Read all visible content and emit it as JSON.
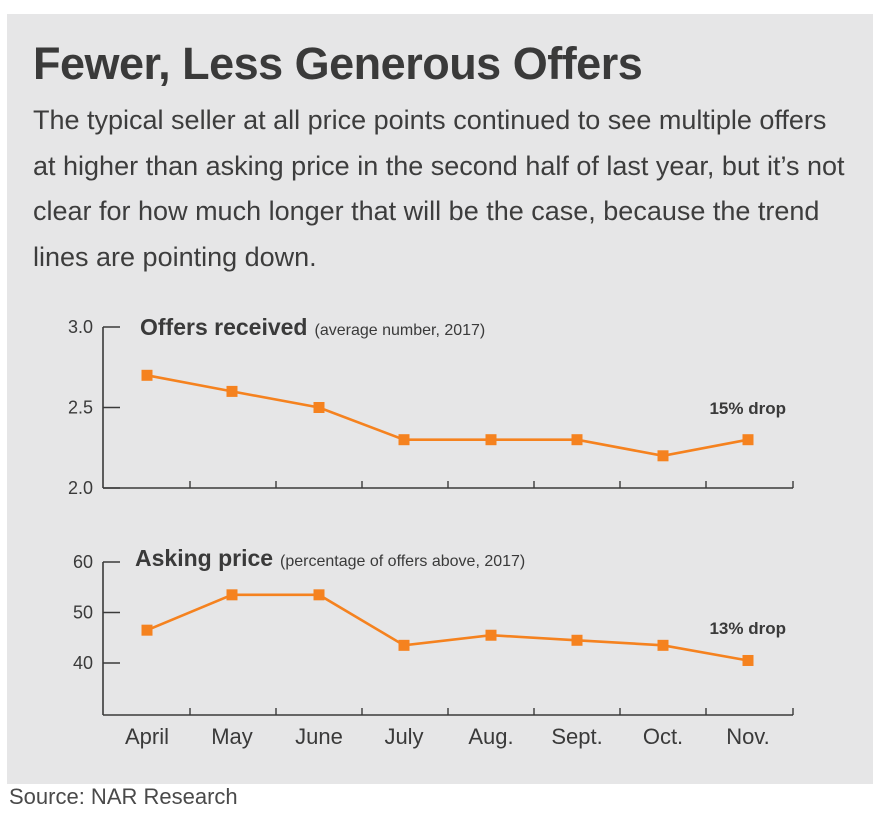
{
  "title": "Fewer, Less Generous Offers",
  "subtitle": "The typical seller at all price points continued to see multiple offers at higher than asking price in the second half of last year, but it’s not clear for how much longer that will be the case, because the trend lines are pointing down.",
  "source": "Source: NAR Research",
  "colors": {
    "background": "#e6e6e7",
    "line": "#f5821f",
    "text": "#3a3a3a"
  },
  "chart_data": [
    {
      "type": "line",
      "title": "Offers received",
      "subtitle": "(average number, 2017)",
      "categories": [
        "April",
        "May",
        "June",
        "July",
        "Aug.",
        "Sept.",
        "Oct.",
        "Nov."
      ],
      "values": [
        2.7,
        2.6,
        2.5,
        2.3,
        2.3,
        2.3,
        2.2,
        2.3
      ],
      "ylim": [
        2.0,
        3.0
      ],
      "yticks": [
        "3.0",
        "2.5",
        "2.0"
      ],
      "annotation": "15% drop",
      "grid": false
    },
    {
      "type": "line",
      "title": "Asking price",
      "subtitle": "(percentage of offers above, 2017)",
      "categories": [
        "April",
        "May",
        "June",
        "July",
        "Aug.",
        "Sept.",
        "Oct.",
        "Nov."
      ],
      "values": [
        46.5,
        53.5,
        53.5,
        43.5,
        45.5,
        44.5,
        43.5,
        40.5
      ],
      "ylim": [
        32,
        60
      ],
      "yticks": [
        "60",
        "50",
        "40"
      ],
      "annotation": "13% drop",
      "grid": false
    }
  ]
}
